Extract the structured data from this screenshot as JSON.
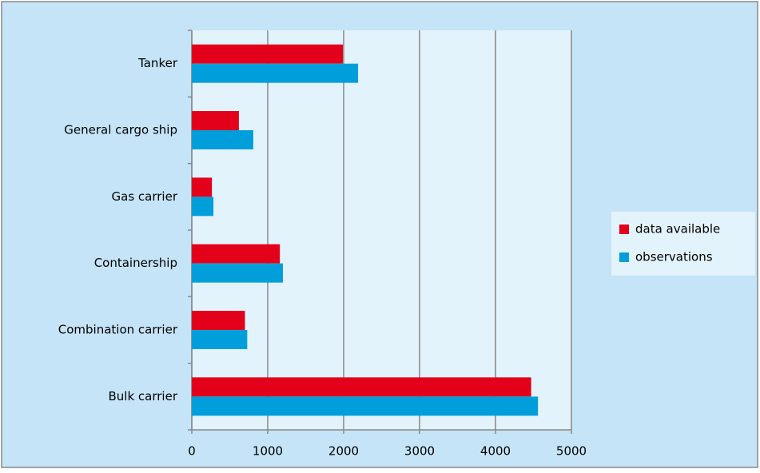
{
  "chart_data": {
    "type": "hbar",
    "categories": [
      "Tanker",
      "General cargo ship",
      "Gas carrier",
      "Containership",
      "Combination carrier",
      "Bulk carrier"
    ],
    "series": [
      {
        "name": "data available",
        "color": "#e3001b",
        "values": [
          1990,
          620,
          265,
          1160,
          700,
          4470
        ]
      },
      {
        "name": "observations",
        "color": "#009fdb",
        "values": [
          2190,
          810,
          285,
          1200,
          730,
          4560
        ]
      }
    ],
    "xlim": [
      0,
      5000
    ],
    "xticks": [
      0,
      1000,
      2000,
      3000,
      4000,
      5000
    ],
    "grid": true,
    "legend": "right"
  }
}
